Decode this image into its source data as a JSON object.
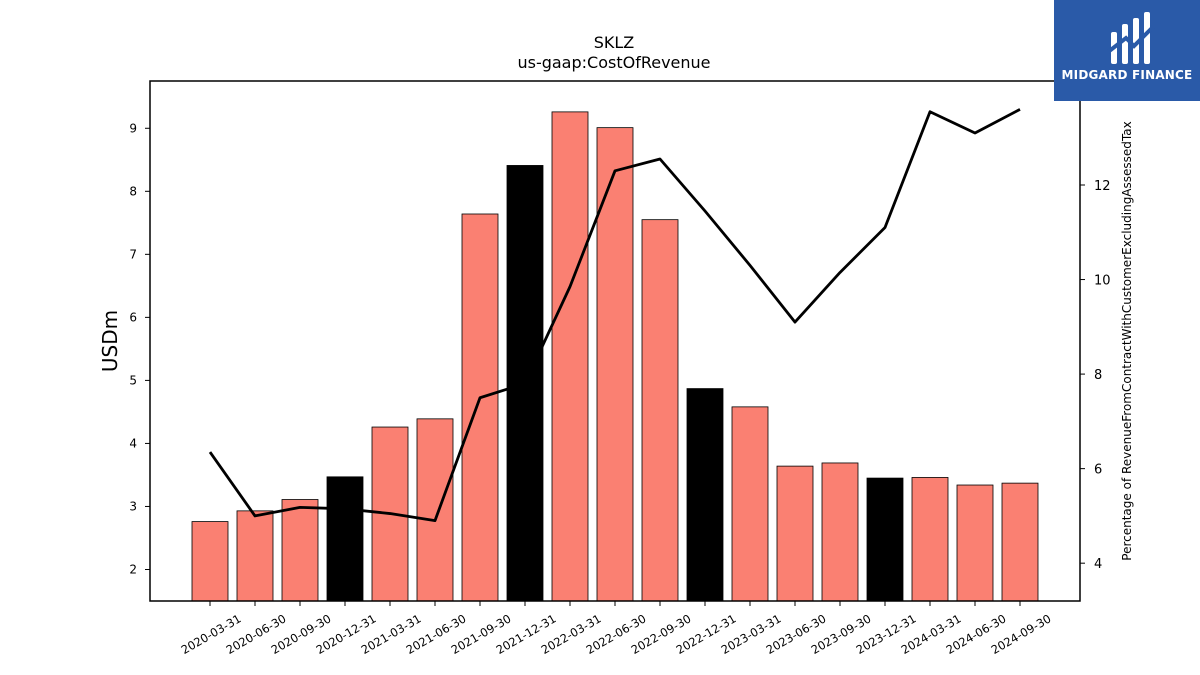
{
  "chart_data": {
    "type": "bar",
    "title": "SKLZ",
    "subtitle": "us-gaap:CostOfRevenue",
    "ylabel": "USDm",
    "y2label": "Percentage of RevenueFromContractWithCustomerExcludingAssessedTax",
    "ylim": [
      1.5,
      9.75
    ],
    "y2lim": [
      3.2,
      14.2
    ],
    "yticks": [
      2,
      3,
      4,
      5,
      6,
      7,
      8,
      9
    ],
    "y2ticks": [
      4,
      6,
      8,
      10,
      12
    ],
    "categories": [
      "2020-03-31",
      "2020-06-30",
      "2020-09-30",
      "2020-12-31",
      "2021-03-31",
      "2021-06-30",
      "2021-09-30",
      "2021-12-31",
      "2022-03-31",
      "2022-06-30",
      "2022-09-30",
      "2022-12-31",
      "2023-03-31",
      "2023-06-30",
      "2023-09-30",
      "2023-12-31",
      "2024-03-31",
      "2024-06-30",
      "2024-09-30"
    ],
    "series": [
      {
        "kind": "bar",
        "values": [
          2.76,
          2.93,
          3.11,
          3.47,
          4.26,
          4.39,
          7.64,
          8.41,
          9.26,
          9.01,
          7.55,
          4.87,
          4.58,
          3.64,
          3.69,
          3.45,
          3.46,
          3.34,
          3.37
        ],
        "highlight": [
          false,
          false,
          false,
          true,
          false,
          false,
          false,
          true,
          false,
          false,
          false,
          true,
          false,
          false,
          false,
          true,
          false,
          false,
          false
        ],
        "color": "#fa8072",
        "highlight_color": "#000000"
      },
      {
        "kind": "line",
        "axis": "right",
        "values": [
          6.35,
          5.0,
          5.18,
          5.15,
          5.05,
          4.9,
          7.5,
          7.8,
          9.85,
          12.3,
          12.55,
          11.45,
          10.3,
          9.1,
          10.15,
          11.1,
          13.55,
          13.1,
          13.6
        ],
        "color": "#000000"
      }
    ],
    "grid": false
  },
  "logo": {
    "text": "MIDGARD FINANCE",
    "background": "#2a5aa8"
  }
}
